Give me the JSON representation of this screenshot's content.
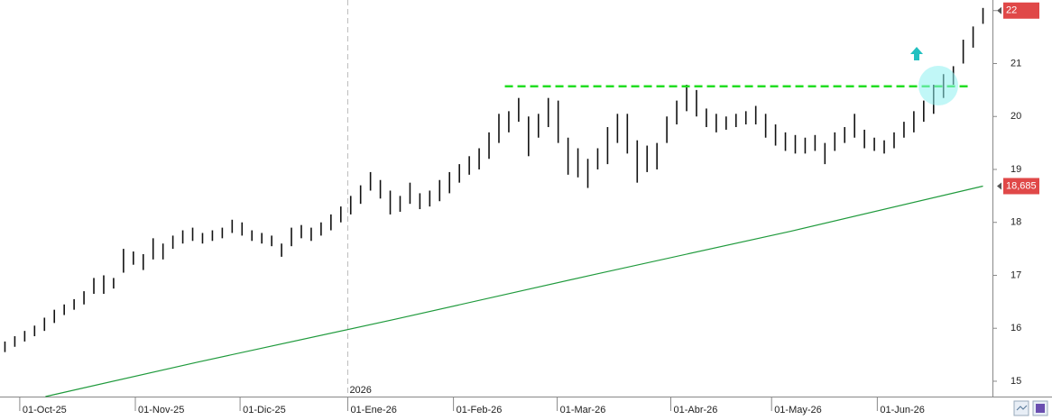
{
  "chart_data": {
    "type": "range_bar",
    "xlim": [
      0,
      100
    ],
    "ylim": [
      14.71,
      22.2
    ],
    "yticks": [
      15,
      16,
      17,
      18,
      19,
      20,
      21,
      22
    ],
    "xticks": [
      {
        "value": 2.0,
        "label": "01-Oct-25"
      },
      {
        "value": 13.7,
        "label": "01-Nov-25"
      },
      {
        "value": 24.3,
        "label": "01-Dic-25"
      },
      {
        "value": 35.2,
        "label": "01-Ene-26"
      },
      {
        "value": 45.9,
        "label": "01-Feb-26"
      },
      {
        "value": 56.4,
        "label": "01-Mar-26"
      },
      {
        "value": 67.9,
        "label": "01-Abr-26"
      },
      {
        "value": 78.1,
        "label": "01-May-26"
      },
      {
        "value": 88.8,
        "label": "01-Jun-26"
      }
    ],
    "year_marker": {
      "value": 35.2,
      "label": "2026"
    },
    "bars": {
      "color": "#111111",
      "high": [
        15.75,
        15.85,
        15.95,
        16.05,
        16.2,
        16.35,
        16.45,
        16.55,
        16.7,
        16.95,
        17.0,
        16.95,
        17.5,
        17.45,
        17.4,
        17.7,
        17.6,
        17.75,
        17.85,
        17.9,
        17.8,
        17.85,
        17.9,
        18.05,
        18.0,
        17.85,
        17.8,
        17.75,
        17.6,
        17.9,
        17.95,
        17.9,
        18.0,
        18.15,
        18.3,
        18.5,
        18.7,
        18.95,
        18.8,
        18.6,
        18.5,
        18.75,
        18.55,
        18.6,
        18.8,
        18.95,
        19.1,
        19.25,
        19.4,
        19.7,
        20.05,
        20.1,
        20.35,
        20.0,
        20.05,
        20.35,
        20.3,
        19.6,
        19.4,
        19.2,
        19.4,
        19.8,
        20.05,
        20.05,
        19.55,
        19.45,
        19.5,
        20.0,
        20.3,
        20.6,
        20.5,
        20.15,
        20.05,
        20.0,
        20.05,
        20.1,
        20.2,
        20.05,
        19.85,
        19.7,
        19.65,
        19.6,
        19.65,
        19.5,
        19.7,
        19.8,
        20.05,
        19.75,
        19.6,
        19.55,
        19.7,
        19.9,
        20.1,
        20.3,
        20.6,
        20.8,
        20.95,
        21.45,
        21.7,
        22.05
      ],
      "low": [
        15.55,
        15.65,
        15.75,
        15.85,
        15.95,
        16.1,
        16.25,
        16.35,
        16.45,
        16.65,
        16.65,
        16.75,
        17.05,
        17.2,
        17.1,
        17.3,
        17.3,
        17.5,
        17.6,
        17.65,
        17.6,
        17.65,
        17.7,
        17.8,
        17.75,
        17.65,
        17.6,
        17.55,
        17.35,
        17.55,
        17.7,
        17.65,
        17.75,
        17.85,
        18.0,
        18.15,
        18.35,
        18.6,
        18.45,
        18.15,
        18.2,
        18.35,
        18.25,
        18.3,
        18.4,
        18.55,
        18.75,
        18.9,
        19.0,
        19.2,
        19.5,
        19.7,
        19.9,
        19.25,
        19.6,
        19.8,
        19.5,
        18.9,
        18.85,
        18.65,
        19.0,
        19.1,
        19.5,
        19.3,
        18.75,
        18.95,
        19.0,
        19.5,
        19.85,
        20.1,
        20.0,
        19.8,
        19.7,
        19.75,
        19.8,
        19.85,
        19.85,
        19.6,
        19.45,
        19.35,
        19.3,
        19.3,
        19.35,
        19.1,
        19.35,
        19.5,
        19.6,
        19.4,
        19.35,
        19.3,
        19.4,
        19.6,
        19.7,
        19.9,
        20.05,
        20.35,
        20.6,
        21.0,
        21.3,
        21.75
      ]
    },
    "moving_average": {
      "color": "#1f9a3c",
      "x": [
        4.6,
        20,
        40,
        60,
        80,
        99.5
      ],
      "values": [
        14.71,
        15.36,
        16.17,
        17.01,
        17.83,
        18.685
      ]
    },
    "resistance": {
      "color": "#22dd22",
      "value": 20.57,
      "x": [
        51.1,
        98.4
      ]
    },
    "markers": [
      {
        "value": 22,
        "label": "22"
      },
      {
        "value": 18.685,
        "label": "18,685"
      }
    ]
  }
}
